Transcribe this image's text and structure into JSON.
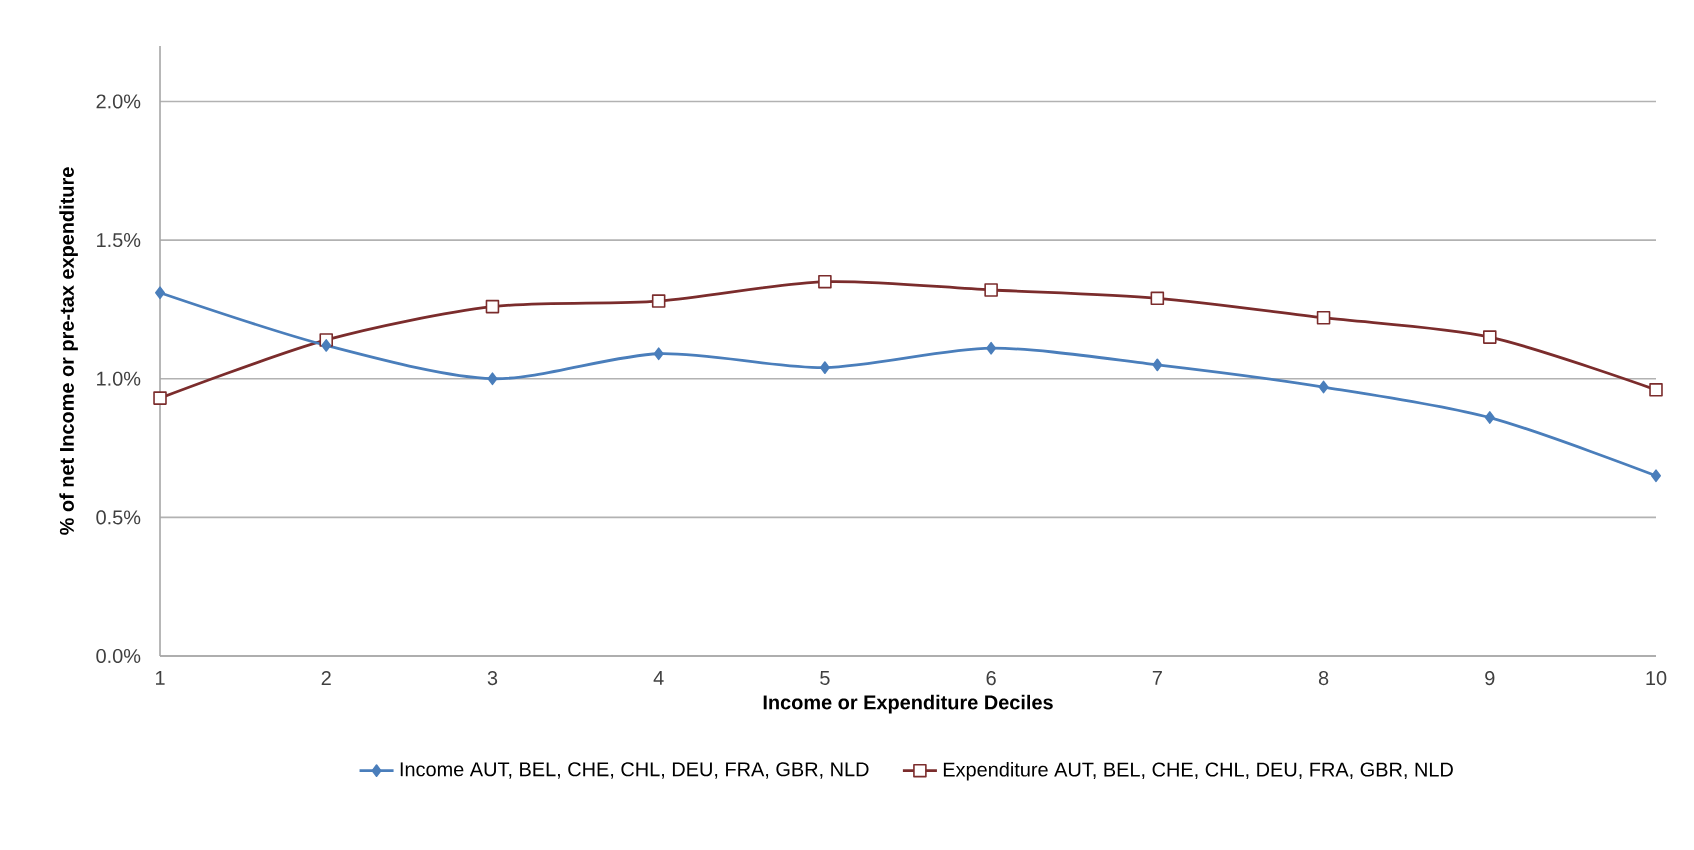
{
  "chart_data": {
    "type": "line",
    "xlabel": "Income or Expenditure Deciles",
    "ylabel": "% of net Income or pre-tax expenditure",
    "x": [
      1,
      2,
      3,
      4,
      5,
      6,
      7,
      8,
      9,
      10
    ],
    "series": [
      {
        "name": "Income AUT, BEL, CHE, CHL, DEU, FRA, GBR, NLD",
        "color": "#4a7ebb",
        "marker": "diamond",
        "values": [
          1.31,
          1.12,
          1.0,
          1.09,
          1.04,
          1.11,
          1.05,
          0.97,
          0.86,
          0.65
        ]
      },
      {
        "name": "Expenditure AUT, BEL, CHE, CHL, DEU, FRA, GBR, NLD",
        "color": "#7b2c2c",
        "marker": "square",
        "values": [
          0.93,
          1.14,
          1.26,
          1.28,
          1.35,
          1.32,
          1.29,
          1.22,
          1.15,
          0.96
        ]
      }
    ],
    "xlim": [
      1,
      10
    ],
    "xticks": [
      1,
      2,
      3,
      4,
      5,
      6,
      7,
      8,
      9,
      10
    ],
    "ylim": [
      0,
      2.2
    ],
    "yticks": [
      {
        "value": 0,
        "label": "0.0%"
      },
      {
        "value": 0.5,
        "label": "0.5%"
      },
      {
        "value": 1.0,
        "label": "1.0%"
      },
      {
        "value": 1.5,
        "label": "1.5%"
      },
      {
        "value": 2.0,
        "label": "2.0%"
      }
    ],
    "grid": "y",
    "legend": "bottom"
  }
}
